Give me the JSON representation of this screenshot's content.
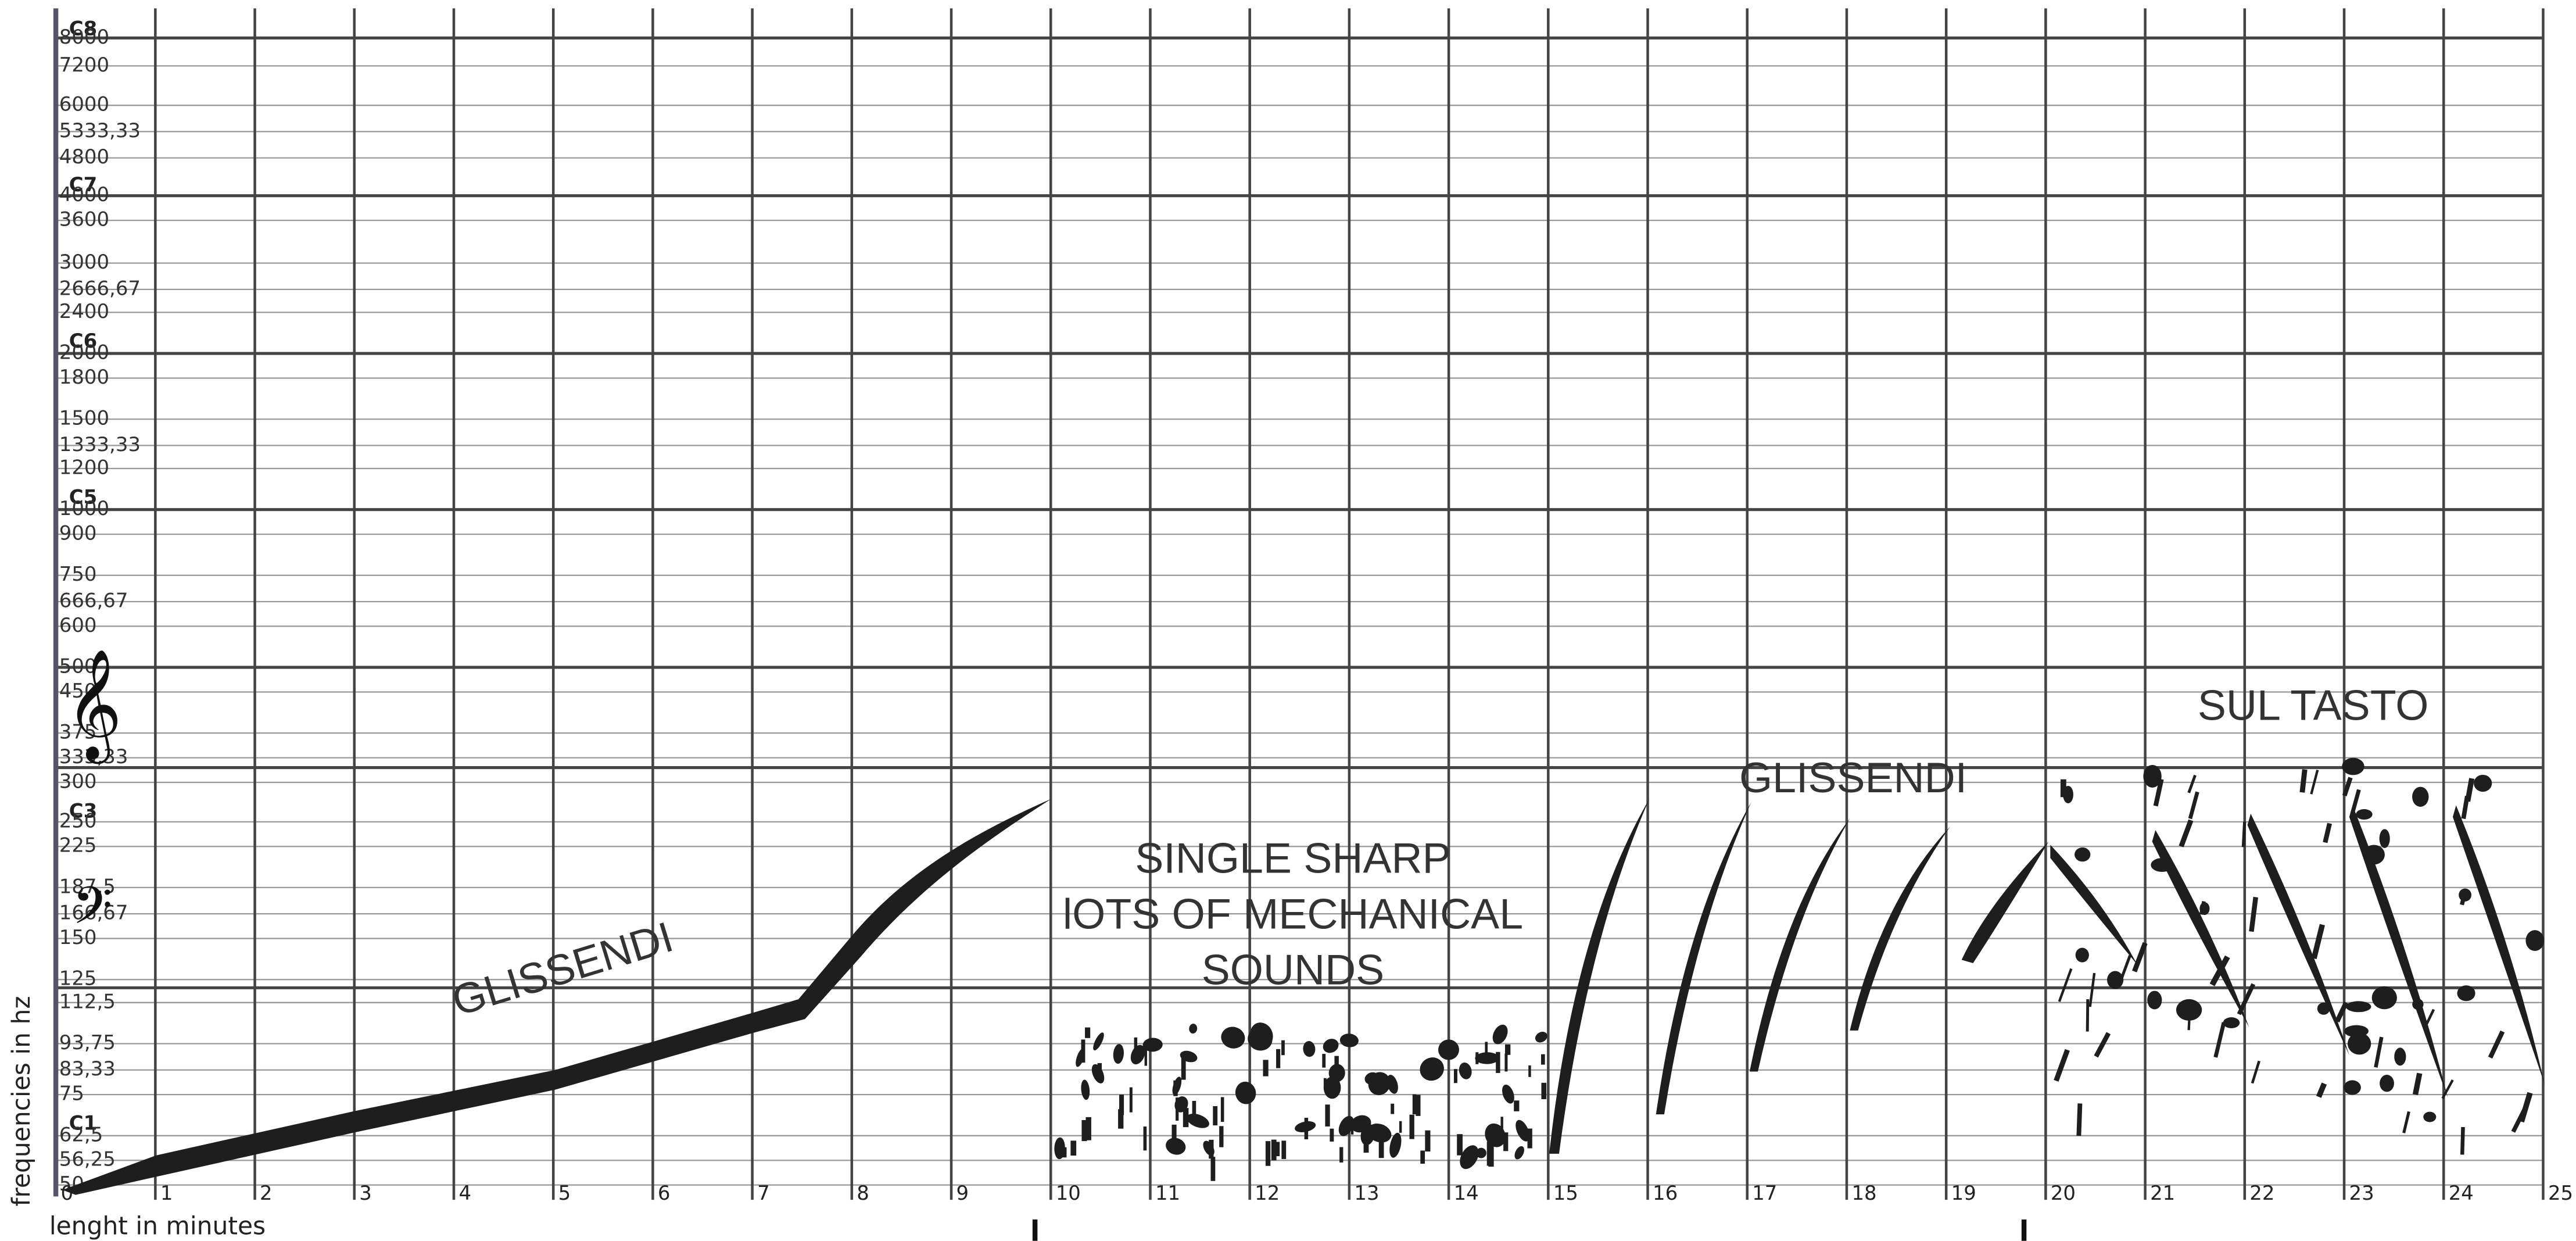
{
  "y_axis": {
    "title": "frequencies in hz",
    "labels": [
      "C8",
      "8000",
      "7200",
      "6000",
      "5333,33",
      "4800",
      "C7",
      "4000",
      "3600",
      "3000",
      "2666,67",
      "2400",
      "C6",
      "2000",
      "1800",
      "1500",
      "1333,33",
      "1200",
      "C5",
      "1000",
      "900",
      "750",
      "666,67",
      "600",
      "500",
      "450",
      "375",
      "333,33",
      "300",
      "C3",
      "250",
      "225",
      "187,5",
      "166,67",
      "150",
      "125",
      "112,5",
      "93,75",
      "83,33",
      "75",
      "C1",
      "62,5",
      "56,25",
      "50"
    ]
  },
  "x_axis": {
    "title": "lenght in minutes",
    "labels": [
      "0",
      "1",
      "2",
      "3",
      "4",
      "5",
      "6",
      "7",
      "8",
      "9",
      "10",
      "11",
      "12",
      "13",
      "14",
      "15",
      "16",
      "17",
      "18",
      "19",
      "20",
      "21",
      "22",
      "23",
      "24",
      "25"
    ]
  },
  "clefs": [
    "𝄞",
    "𝄢"
  ],
  "annotations": [
    "GLISSENDI",
    "SINGLE SHARP",
    "lOTS OF MECHANICAL",
    "SOUNDS",
    "GLISSENDI",
    "SUL TASTO"
  ]
}
